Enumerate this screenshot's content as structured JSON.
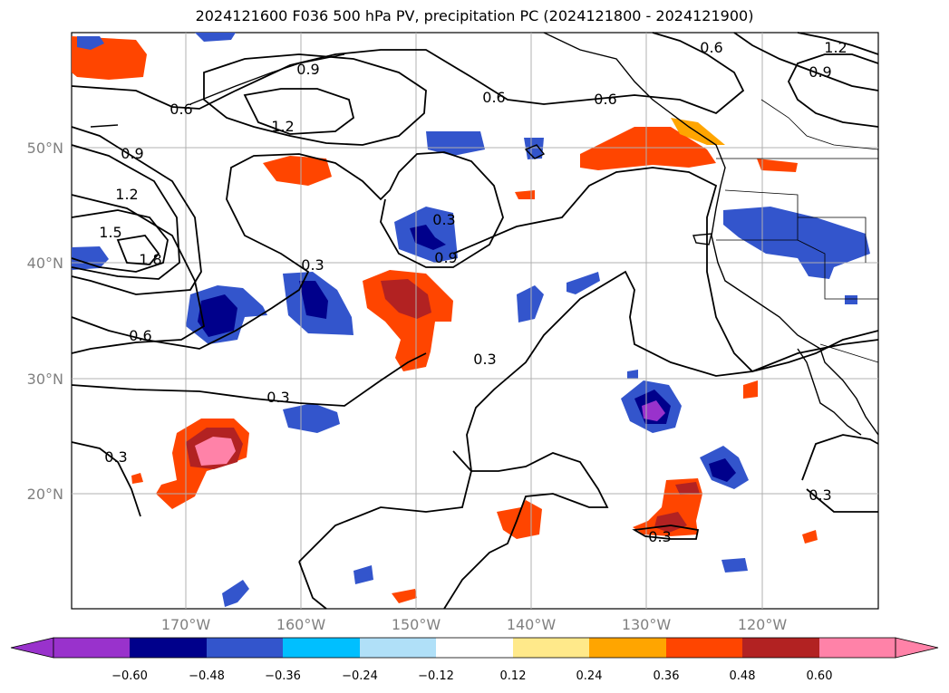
{
  "title": "2024121600 F036 500 hPa PV, precipitation PC (2024121800 - 2024121900)",
  "latitude_labels": [
    "50°N",
    "40°N",
    "30°N",
    "20°N"
  ],
  "longitude_labels": [
    "170°W",
    "160°W",
    "150°W",
    "140°W",
    "130°W",
    "120°W"
  ],
  "contour_labels": [
    "0.9",
    "0.6",
    "1.2",
    "0.6",
    "0.6",
    "0.6",
    "1.2",
    "0.9",
    "0.9",
    "1.2",
    "1.5",
    "1.8",
    "0.3",
    "0.9",
    "0.3",
    "0.6",
    "0.3",
    "0.3",
    "0.3",
    "0.3",
    "0.3"
  ],
  "colorbar": {
    "ticks": [
      "−0.60",
      "−0.48",
      "−0.36",
      "−0.24",
      "−0.12",
      "0.12",
      "0.24",
      "0.36",
      "0.48",
      "0.60"
    ],
    "colors": [
      "#9932cc",
      "#00008b",
      "#3355cc",
      "#00bfff",
      "#b0e0f8",
      "#ffffff",
      "#ffe98a",
      "#ffa500",
      "#ff4500",
      "#b22222",
      "#ff82a8",
      "#ff82a8"
    ]
  },
  "colors": {
    "land_outline": "#000000",
    "grid": "#b0b0b0",
    "contour": "#000000"
  }
}
